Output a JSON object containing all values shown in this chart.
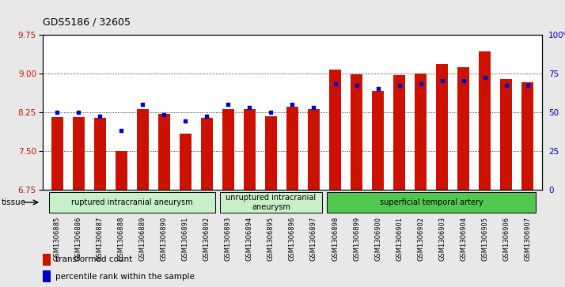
{
  "title": "GDS5186 / 32605",
  "samples": [
    "GSM1306885",
    "GSM1306886",
    "GSM1306887",
    "GSM1306888",
    "GSM1306889",
    "GSM1306890",
    "GSM1306891",
    "GSM1306892",
    "GSM1306893",
    "GSM1306894",
    "GSM1306895",
    "GSM1306896",
    "GSM1306897",
    "GSM1306898",
    "GSM1306899",
    "GSM1306900",
    "GSM1306901",
    "GSM1306902",
    "GSM1306903",
    "GSM1306904",
    "GSM1306905",
    "GSM1306906",
    "GSM1306907"
  ],
  "transformed_count": [
    8.15,
    8.15,
    8.13,
    7.5,
    8.3,
    8.22,
    7.83,
    8.13,
    8.3,
    8.3,
    8.17,
    8.35,
    8.3,
    9.07,
    8.98,
    8.65,
    8.97,
    9.0,
    9.18,
    9.12,
    9.42,
    8.88,
    8.82
  ],
  "percentile_rank": [
    50,
    50,
    47,
    38,
    55,
    48,
    44,
    47,
    55,
    53,
    50,
    55,
    53,
    68,
    67,
    65,
    67,
    68,
    70,
    70,
    72,
    67,
    67
  ],
  "groups": [
    {
      "label": "ruptured intracranial aneurysm",
      "start": 0,
      "end": 8
    },
    {
      "label": "unruptured intracranial\naneurysm",
      "start": 8,
      "end": 13
    },
    {
      "label": "superficial temporal artery",
      "start": 13,
      "end": 23
    }
  ],
  "group_colors": [
    "#c8f0c8",
    "#c8f0c8",
    "#50c850"
  ],
  "ylim_left": [
    6.75,
    9.75
  ],
  "ylim_right": [
    0,
    100
  ],
  "yticks_left": [
    6.75,
    7.5,
    8.25,
    9.0,
    9.75
  ],
  "yticks_right": [
    0,
    25,
    50,
    75,
    100
  ],
  "bar_color": "#cc1100",
  "dot_color": "#0000cc",
  "background_color": "#e8e8e8",
  "plot_bg": "#ffffff",
  "tissue_label": "tissue",
  "legend_items": [
    {
      "label": "transformed count",
      "color": "#cc1100"
    },
    {
      "label": "percentile rank within the sample",
      "color": "#0000cc"
    }
  ]
}
